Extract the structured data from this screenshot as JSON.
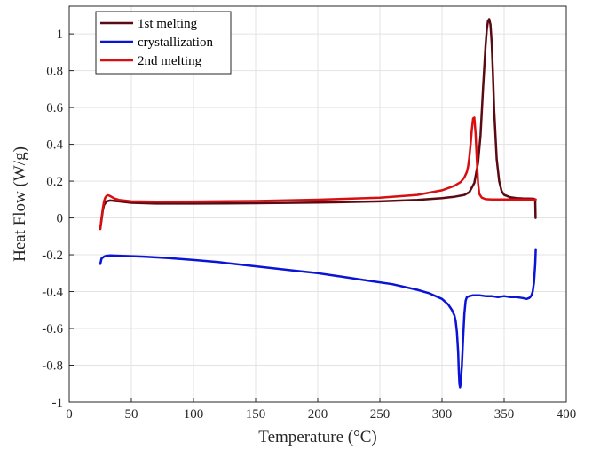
{
  "chart_data": {
    "type": "line",
    "xlabel": "Temperature (°C)",
    "ylabel": "Heat Flow (W/g)",
    "xlim": [
      0,
      400
    ],
    "ylim": [
      -1,
      1.15
    ],
    "xticks": [
      0,
      50,
      100,
      150,
      200,
      250,
      300,
      350,
      400
    ],
    "yticks": [
      -1,
      -0.8,
      -0.6,
      -0.4,
      -0.2,
      0,
      0.2,
      0.4,
      0.6,
      0.8,
      1
    ],
    "xtick_labels": [
      "0",
      "50",
      "100",
      "150",
      "200",
      "250",
      "300",
      "350",
      "400"
    ],
    "ytick_labels": [
      "-1",
      "-0.8",
      "-0.6",
      "-0.4",
      "-0.2",
      "0",
      "0.2",
      "0.4",
      "0.6",
      "0.8",
      "1"
    ],
    "grid": true,
    "legend_position": "top-left",
    "series": [
      {
        "name": "1st melting",
        "color": "#5a0a12",
        "x": [
          25,
          26,
          27,
          28,
          30,
          33,
          40,
          50,
          70,
          100,
          150,
          200,
          250,
          280,
          300,
          310,
          318,
          322,
          326,
          329,
          331,
          333,
          335,
          336,
          337,
          338,
          339,
          340,
          341,
          342,
          344,
          346,
          348,
          350,
          355,
          360,
          365,
          370,
          374,
          375,
          375.3
        ],
        "y": [
          -0.06,
          -0.01,
          0.04,
          0.07,
          0.09,
          0.095,
          0.09,
          0.082,
          0.078,
          0.078,
          0.08,
          0.083,
          0.09,
          0.098,
          0.108,
          0.115,
          0.125,
          0.14,
          0.19,
          0.3,
          0.45,
          0.7,
          0.93,
          1.02,
          1.07,
          1.08,
          1.05,
          0.95,
          0.78,
          0.58,
          0.32,
          0.2,
          0.145,
          0.125,
          0.112,
          0.108,
          0.106,
          0.105,
          0.104,
          0.1,
          0.0
        ]
      },
      {
        "name": "crystallization",
        "color": "#0a14d6",
        "x": [
          375.4,
          375,
          374,
          373,
          372,
          371,
          370,
          368,
          365,
          360,
          355,
          350,
          345,
          340,
          335,
          330,
          325,
          322,
          320,
          319,
          318,
          317,
          316,
          315,
          314.5,
          314,
          313.5,
          313,
          312,
          311,
          310,
          308,
          305,
          300,
          290,
          280,
          260,
          240,
          220,
          200,
          180,
          160,
          140,
          120,
          100,
          80,
          60,
          40,
          33,
          30,
          28,
          27,
          26,
          25.5,
          25
        ],
        "y": [
          -0.17,
          -0.25,
          -0.35,
          -0.4,
          -0.42,
          -0.43,
          -0.435,
          -0.44,
          -0.435,
          -0.43,
          -0.43,
          -0.425,
          -0.43,
          -0.425,
          -0.425,
          -0.42,
          -0.42,
          -0.425,
          -0.43,
          -0.45,
          -0.52,
          -0.65,
          -0.8,
          -0.9,
          -0.92,
          -0.9,
          -0.83,
          -0.73,
          -0.62,
          -0.56,
          -0.53,
          -0.5,
          -0.47,
          -0.44,
          -0.41,
          -0.39,
          -0.36,
          -0.34,
          -0.32,
          -0.3,
          -0.285,
          -0.27,
          -0.255,
          -0.24,
          -0.228,
          -0.218,
          -0.21,
          -0.205,
          -0.203,
          -0.205,
          -0.21,
          -0.215,
          -0.22,
          -0.235,
          -0.25
        ]
      },
      {
        "name": "2nd melting",
        "color": "#d70f10",
        "x": [
          25,
          26,
          27,
          28,
          29,
          30,
          31,
          32,
          34,
          36,
          40,
          50,
          70,
          100,
          150,
          200,
          250,
          280,
          300,
          310,
          315,
          318,
          320,
          321,
          322,
          323,
          324,
          325,
          326,
          327,
          328,
          329,
          330,
          332,
          335,
          340,
          345,
          350,
          360,
          370,
          375,
          375.4
        ],
        "y": [
          -0.06,
          0.0,
          0.05,
          0.09,
          0.11,
          0.12,
          0.123,
          0.122,
          0.115,
          0.107,
          0.098,
          0.09,
          0.088,
          0.089,
          0.092,
          0.099,
          0.11,
          0.125,
          0.15,
          0.175,
          0.195,
          0.22,
          0.25,
          0.28,
          0.33,
          0.4,
          0.48,
          0.54,
          0.545,
          0.46,
          0.32,
          0.19,
          0.13,
          0.11,
          0.102,
          0.1,
          0.1,
          0.1,
          0.1,
          0.1,
          0.1,
          0.1
        ]
      }
    ]
  }
}
